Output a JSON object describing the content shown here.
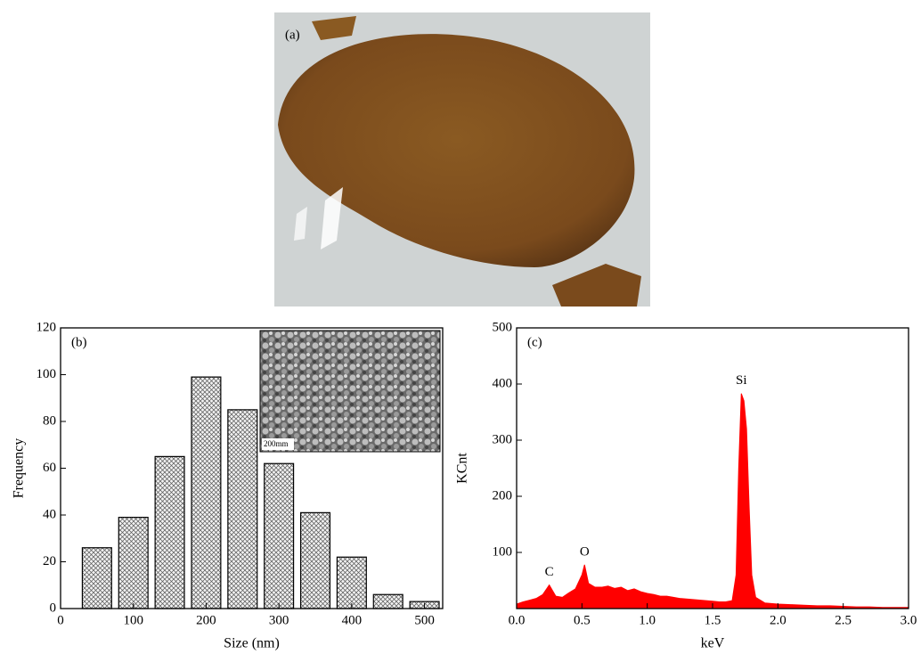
{
  "photo": {
    "label": "(a)"
  },
  "chart_data": [
    {
      "type": "histogram",
      "panel_label": "(b)",
      "x_label": "Size (nm)",
      "y_label": "Frequency",
      "bins": [
        25,
        75,
        125,
        175,
        225,
        275,
        325,
        375,
        425,
        475,
        525
      ],
      "values": [
        26,
        39,
        65,
        99,
        85,
        62,
        41,
        22,
        6,
        3
      ],
      "xlim": [
        0,
        525
      ],
      "ylim": [
        0,
        120
      ],
      "xticks": [
        0,
        100,
        200,
        300,
        400,
        500
      ],
      "yticks": [
        0,
        20,
        40,
        60,
        80,
        100,
        120
      ],
      "inset_label": "200mm"
    },
    {
      "type": "area",
      "panel_label": "(c)",
      "x_label": "keV",
      "y_label": "KCnt",
      "color": "#ff0000",
      "x": [
        0,
        0.05,
        0.1,
        0.15,
        0.2,
        0.25,
        0.28,
        0.3,
        0.35,
        0.4,
        0.45,
        0.5,
        0.52,
        0.55,
        0.6,
        0.65,
        0.7,
        0.75,
        0.8,
        0.85,
        0.9,
        0.95,
        1.0,
        1.05,
        1.1,
        1.15,
        1.2,
        1.25,
        1.3,
        1.35,
        1.4,
        1.45,
        1.5,
        1.55,
        1.6,
        1.65,
        1.68,
        1.7,
        1.72,
        1.74,
        1.76,
        1.78,
        1.8,
        1.83,
        1.9,
        2.0,
        2.1,
        2.2,
        2.3,
        2.4,
        2.5,
        2.6,
        2.7,
        2.8,
        2.9,
        3.0
      ],
      "values": [
        8,
        12,
        15,
        18,
        25,
        42,
        30,
        22,
        20,
        28,
        35,
        60,
        78,
        45,
        38,
        38,
        40,
        36,
        38,
        32,
        35,
        30,
        27,
        25,
        22,
        22,
        20,
        18,
        17,
        16,
        15,
        14,
        13,
        12,
        12,
        14,
        60,
        250,
        383,
        370,
        320,
        180,
        60,
        20,
        10,
        8,
        7,
        6,
        5,
        5,
        4,
        3,
        3,
        2,
        2,
        2
      ],
      "xlim": [
        0,
        3
      ],
      "ylim": [
        0,
        500
      ],
      "xticks": [
        {
          "value": 0,
          "label": "0.0"
        },
        0.5,
        {
          "value": 1,
          "label": "1.0"
        },
        1.5,
        {
          "value": 2,
          "label": "2.0"
        },
        2.5,
        {
          "value": 3,
          "label": "3.0"
        }
      ],
      "yticks": [
        100,
        200,
        300,
        400,
        500
      ],
      "annotations": [
        {
          "text": "C",
          "x": 0.25
        },
        {
          "text": "O",
          "x": 0.52
        },
        {
          "text": "Si",
          "x": 1.72
        }
      ]
    }
  ]
}
